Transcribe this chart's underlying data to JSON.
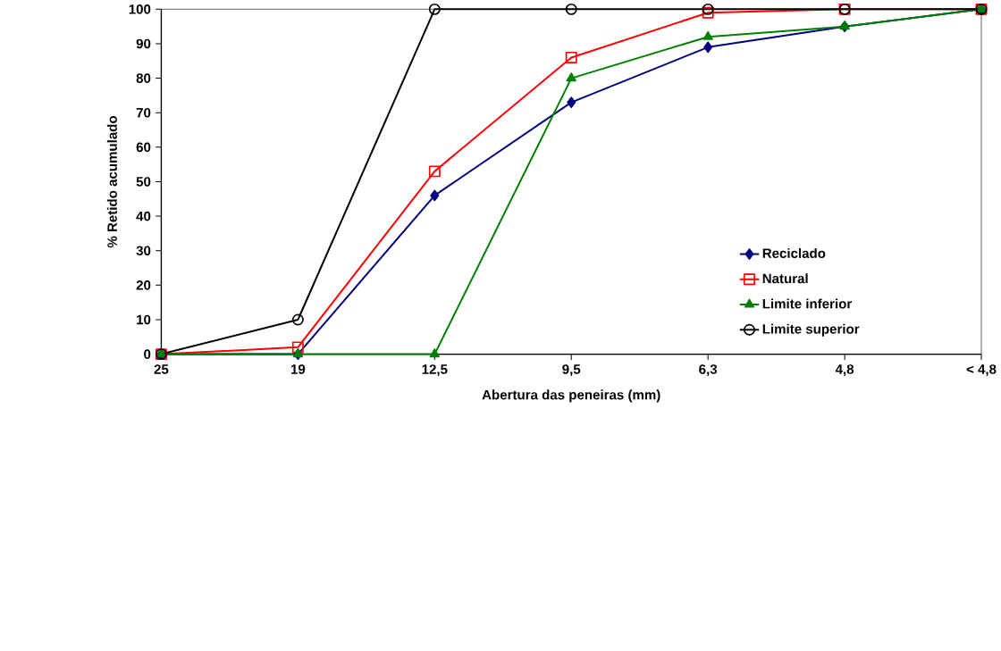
{
  "chart_data": {
    "type": "line",
    "xlabel": "Abertura das peneiras  (mm)",
    "ylabel": "% Retido acumulado",
    "categories": [
      "25",
      "19",
      "12,5",
      "9,5",
      "6,3",
      "4,8",
      "< 4,8"
    ],
    "ylim": [
      0,
      100
    ],
    "yticks": [
      0,
      10,
      20,
      30,
      40,
      50,
      60,
      70,
      80,
      90,
      100
    ],
    "grid": false,
    "legend": "bottom right",
    "line_style": "solid",
    "series": [
      {
        "name": "Reciclado",
        "color": "#000080",
        "marker": "diamond",
        "values": [
          0,
          0,
          46,
          73,
          89,
          95,
          100
        ]
      },
      {
        "name": "Natural",
        "color": "#ff0000",
        "marker": "square",
        "values": [
          0,
          2,
          53,
          86,
          99,
          100,
          100
        ]
      },
      {
        "name": "Limite inferior",
        "color": "#008000",
        "marker": "triangle",
        "values": [
          0,
          0,
          0,
          80,
          92,
          95,
          100
        ]
      },
      {
        "name": "Limite superior",
        "color": "#000000",
        "marker": "circle",
        "values": [
          0,
          10,
          100,
          100,
          100,
          100,
          100
        ]
      }
    ]
  }
}
